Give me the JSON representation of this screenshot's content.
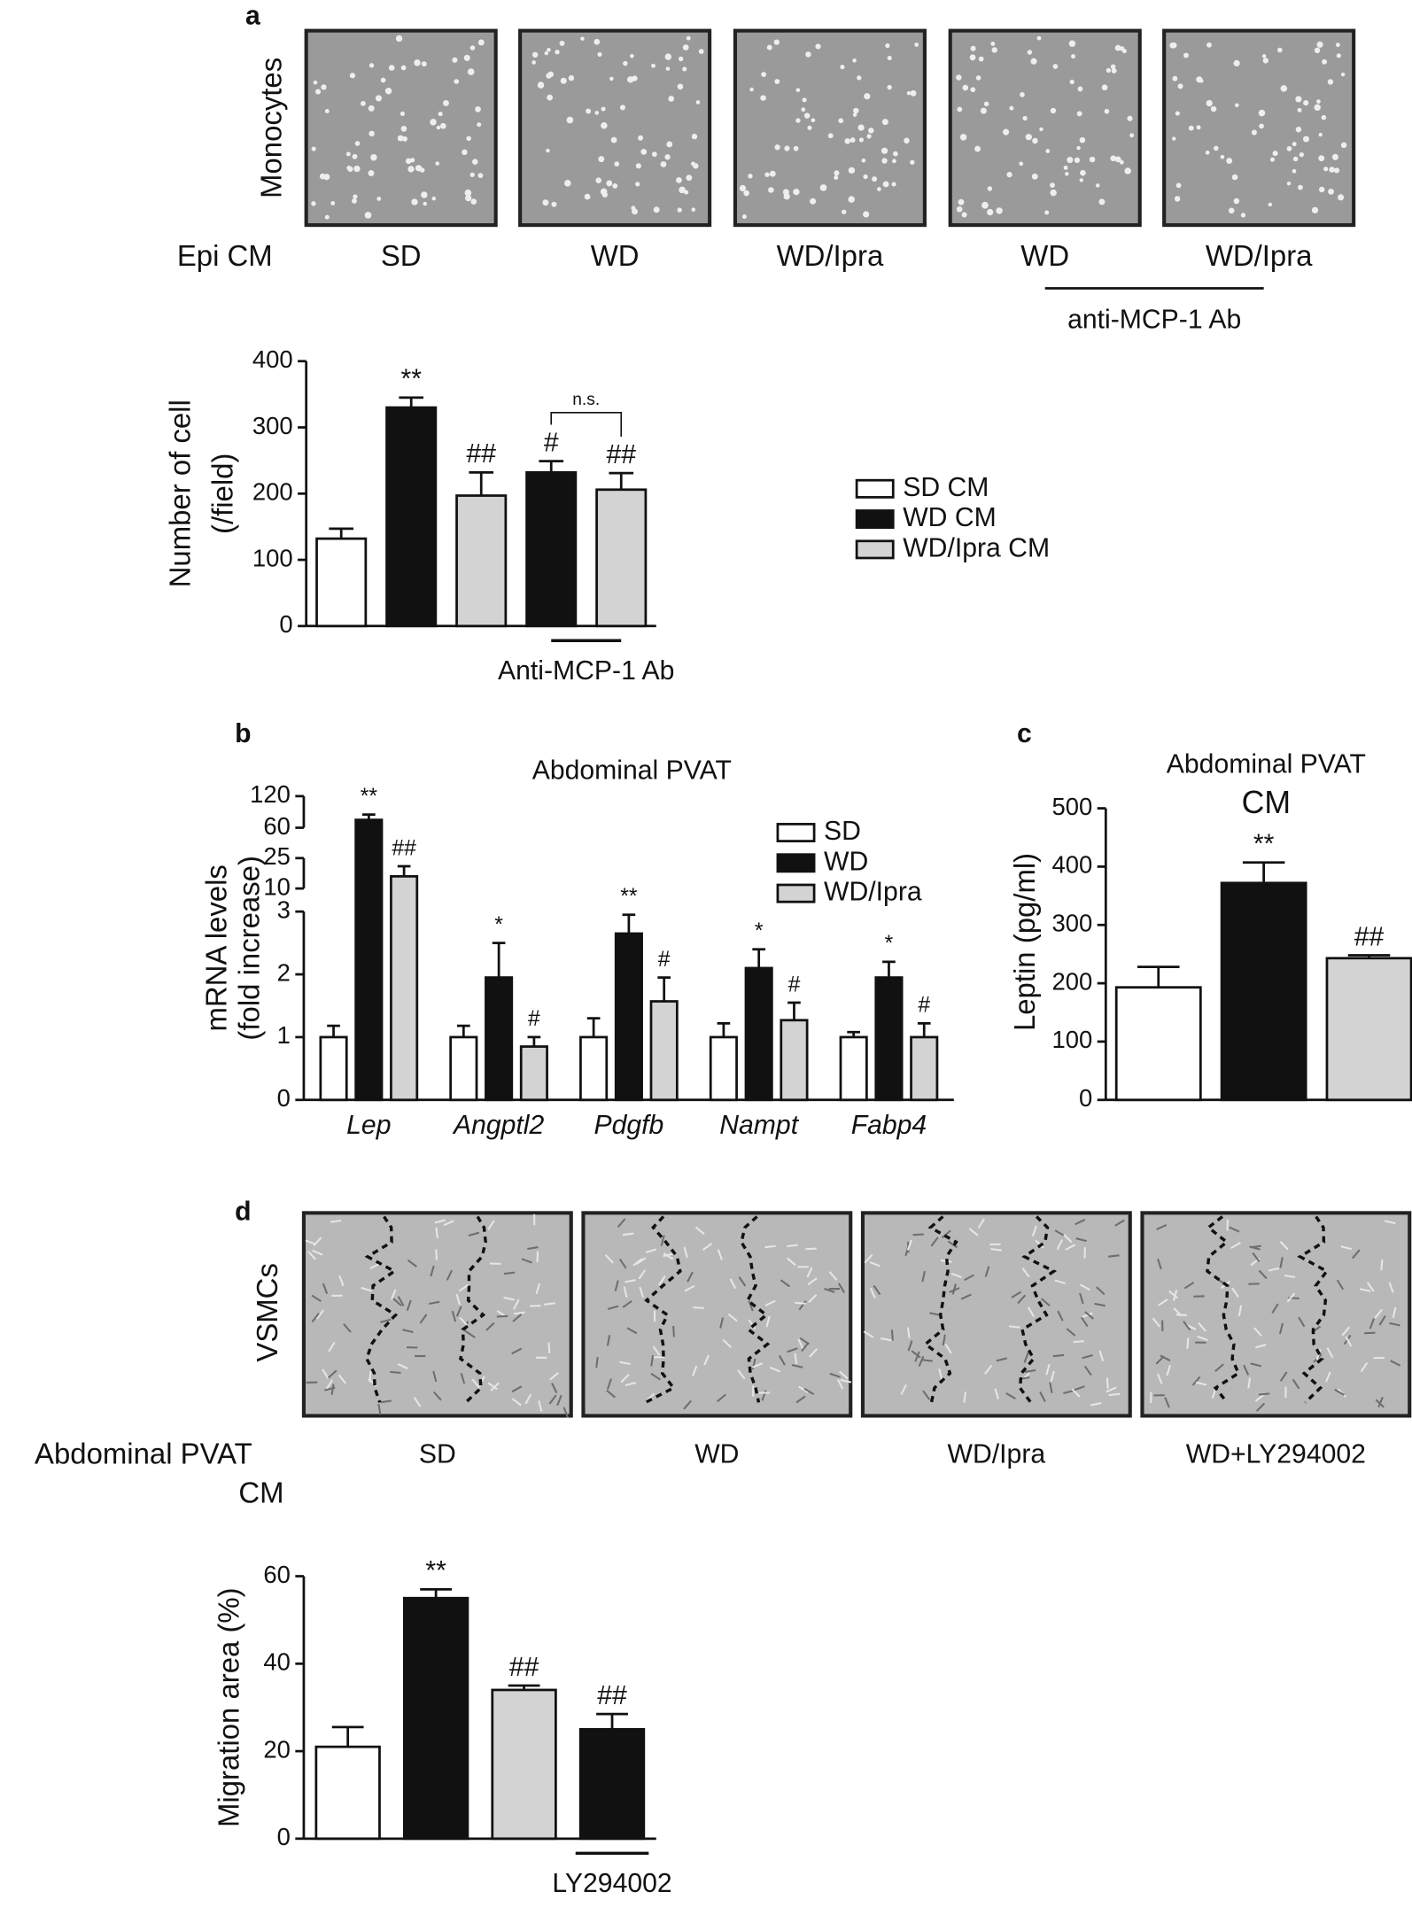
{
  "panel_a": {
    "letter": "a",
    "row_label": "Monocytes",
    "condition_label": "Epi CM",
    "conditions": [
      "SD",
      "WD",
      "WD/Ipra",
      "WD",
      "WD/Ipra"
    ],
    "bracket_label": "anti-MCP-1 Ab"
  },
  "panel_d": {
    "letter": "d",
    "row_label": "VSMCs",
    "condition_label": [
      "Abdominal PVAT",
      "CM"
    ],
    "conditions": [
      "SD",
      "WD",
      "WD/Ipra",
      "WD+LY294002"
    ]
  },
  "chart_data": [
    {
      "type": "bar",
      "categories": [
        null,
        null,
        null,
        null,
        null
      ],
      "series": [
        {
          "name": "SD CM",
          "color": "#ffffff",
          "values": [
            132,
            null,
            null,
            null,
            null
          ],
          "errors": [
            15,
            null,
            null,
            null,
            null
          ],
          "markers": [
            null,
            null,
            null,
            null,
            null
          ]
        },
        {
          "name": "WD CM",
          "color": "#111111",
          "values": [
            null,
            330,
            null,
            232,
            null
          ],
          "errors": [
            null,
            15,
            null,
            17,
            null
          ],
          "markers": [
            null,
            "**",
            null,
            "#",
            null
          ]
        },
        {
          "name": "WD/Ipra CM",
          "color": "#d3d3d3",
          "values": [
            null,
            null,
            197,
            null,
            206
          ],
          "errors": [
            null,
            null,
            35,
            null,
            25
          ],
          "markers": [
            null,
            null,
            "##",
            null,
            "##"
          ]
        }
      ],
      "ylabel": [
        "Number of cell",
        "(/field)"
      ],
      "ylim": [
        0,
        400
      ],
      "yticks": [
        0,
        100,
        200,
        300,
        400
      ],
      "bracket_label": "n.s.",
      "group_label": "Anti-MCP-1 Ab",
      "legend": "right"
    },
    {
      "type": "bar",
      "panel": "b",
      "title": "Abdominal PVAT",
      "categories": [
        "Lep",
        "Angptl2",
        "Pdgfb",
        "Nampt",
        "Fabp4"
      ],
      "series": [
        {
          "name": "SD",
          "color": "#ffffff",
          "values": [
            1,
            1,
            1,
            1,
            1
          ],
          "errors": [
            0.18,
            0.18,
            0.3,
            0.22,
            0.08
          ],
          "markers": [
            null,
            null,
            null,
            null,
            null
          ]
        },
        {
          "name": "WD",
          "color": "#111111",
          "values": [
            75,
            1.95,
            2.65,
            2.1,
            1.95
          ],
          "errors": [
            10,
            0.55,
            0.3,
            0.3,
            0.25
          ],
          "markers": [
            "**",
            "*",
            "**",
            "*",
            "*"
          ]
        },
        {
          "name": "WD/Ipra",
          "color": "#d3d3d3",
          "values": [
            16,
            0.85,
            1.57,
            1.27,
            1.0
          ],
          "errors": [
            5,
            0.15,
            0.38,
            0.28,
            0.22
          ],
          "markers": [
            "##",
            "#",
            "#",
            "#",
            "#"
          ]
        }
      ],
      "ylabel": [
        "mRNA levels",
        "(fold increase)"
      ],
      "ylim": [
        0,
        120
      ],
      "yticks": [
        0,
        1,
        2,
        3,
        10,
        25,
        60,
        120
      ],
      "axis_breaks": [
        [
          0,
          3
        ],
        [
          10,
          25
        ],
        [
          60,
          120
        ]
      ],
      "legend": "upper right"
    },
    {
      "type": "bar",
      "panel": "c",
      "title": [
        "Abdominal PVAT",
        "CM"
      ],
      "categories": [
        null,
        null,
        null
      ],
      "values": [
        193,
        372,
        243
      ],
      "errors": [
        35,
        35,
        5
      ],
      "markers": [
        null,
        "**",
        "##"
      ],
      "colors": [
        "#ffffff",
        "#111111",
        "#d3d3d3"
      ],
      "ylabel": "Leptin (pg/ml)",
      "ylim": [
        0,
        500
      ],
      "yticks": [
        0,
        100,
        200,
        300,
        400,
        500
      ]
    },
    {
      "type": "bar",
      "categories": [
        null,
        null,
        null,
        null
      ],
      "values": [
        21,
        55,
        34,
        25
      ],
      "errors": [
        4.5,
        2,
        1,
        3.5
      ],
      "markers": [
        null,
        "**",
        "##",
        "##"
      ],
      "colors": [
        "#ffffff",
        "#111111",
        "#d3d3d3",
        "#111111"
      ],
      "ylabel": "Migration area (%)",
      "ylim": [
        0,
        60
      ],
      "yticks": [
        0,
        20,
        40,
        60
      ],
      "group_label": "LY294002"
    }
  ]
}
